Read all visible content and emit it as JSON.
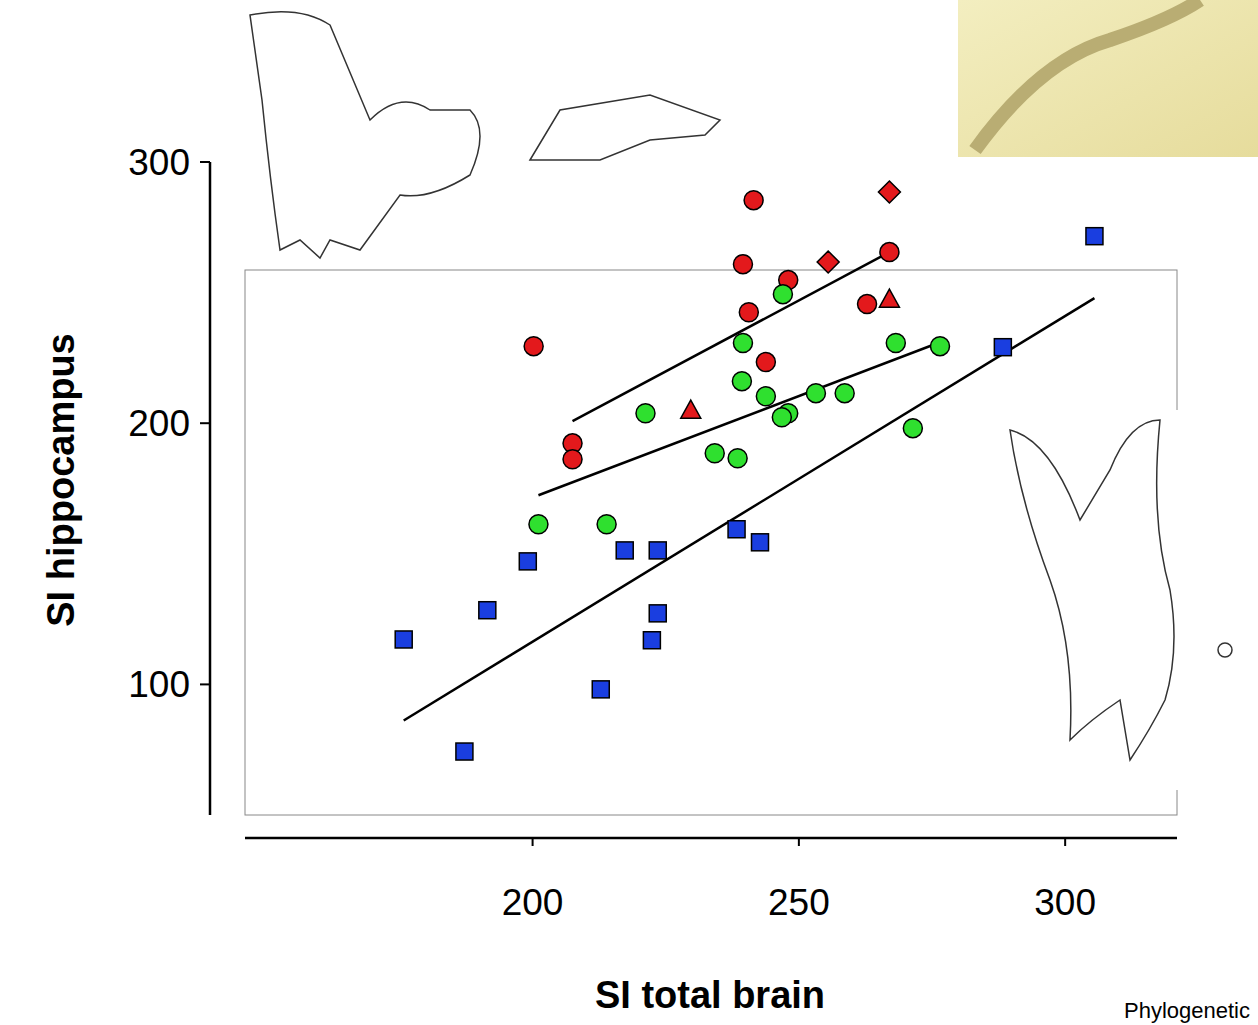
{
  "chart_data": {
    "type": "scatter",
    "x_label": "SI  total brain",
    "y_label": "SI  hippocampus",
    "annotation": "Phylogenetic",
    "xlim": [
      146,
      321
    ],
    "xticks": [
      200,
      250,
      300
    ],
    "ylim": [
      50,
      300
    ],
    "yticks": [
      100,
      200,
      300
    ],
    "grid": false,
    "series": [
      {
        "color": "#e3191c",
        "marker": "circle",
        "x": [
          200.2,
          241.5,
          239.5,
          248,
          240.6,
          243.8,
          207.5,
          207.5,
          262.8,
          267
        ],
        "values": [
          229.5,
          285.4,
          260.9,
          254.8,
          242.5,
          223.4,
          192.3,
          186.2,
          245.6,
          265.5
        ]
      },
      {
        "color": "#e3191c",
        "marker": "diamond",
        "x": [
          255.5,
          267
        ],
        "values": [
          261.7,
          288.5
        ]
      },
      {
        "color": "#e3191c",
        "marker": "triangle",
        "x": [
          229.7,
          267
        ],
        "values": [
          205,
          247.5
        ]
      },
      {
        "color": "#2fe02f",
        "marker": "circle",
        "x": [
          247,
          239.5,
          239.3,
          243.8,
          248,
          246.8,
          221.2,
          234.2,
          238.5,
          268.2,
          276.5,
          253.2,
          258.6,
          271.4,
          201.1,
          213.9
        ],
        "values": [
          249.4,
          230.7,
          216.1,
          210.3,
          203.8,
          202.3,
          203.8,
          188.5,
          186.6,
          230.7,
          229.5,
          211.5,
          211.5,
          198.1,
          161.3,
          161.3
        ]
      },
      {
        "color": "#1a3ee0",
        "marker": "square",
        "x": [
          305.5,
          288.3,
          238.3,
          242.7,
          217.3,
          223.5,
          199.1,
          191.5,
          223.5,
          222.4,
          175.8,
          212.8,
          187.2
        ],
        "values": [
          271.6,
          229.1,
          159.4,
          154.4,
          151.3,
          151.3,
          147.1,
          128.4,
          127.2,
          116.9,
          117.2,
          98.1,
          74.3
        ]
      },
      {
        "type": "line",
        "color": "#000000",
        "line_style": "solid",
        "x": [
          207.5,
          267
        ],
        "values": [
          200.8,
          265.5
        ]
      },
      {
        "type": "line",
        "color": "#000000",
        "line_style": "solid",
        "x": [
          201.1,
          276.5
        ],
        "values": [
          172.4,
          231
        ]
      },
      {
        "type": "line",
        "color": "#000000",
        "line_style": "solid",
        "x": [
          175.8,
          305.5
        ],
        "values": [
          86.2,
          247.9
        ]
      }
    ]
  }
}
